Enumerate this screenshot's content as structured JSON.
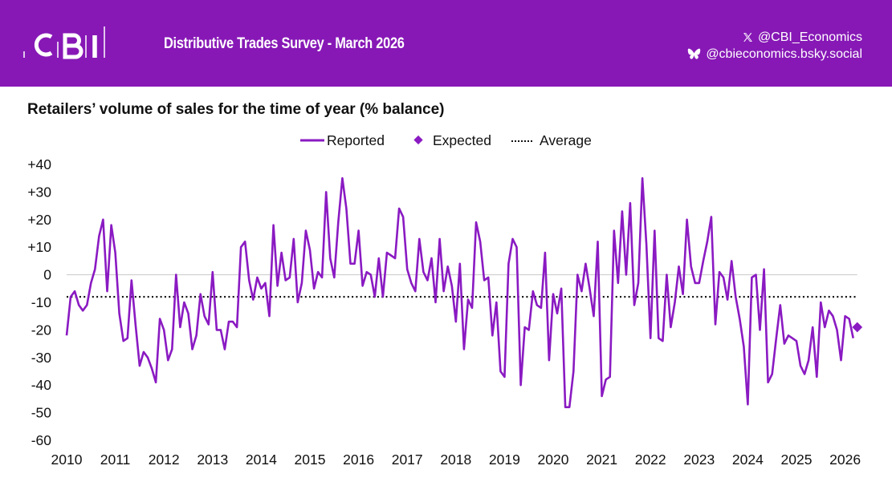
{
  "header": {
    "logo_text": "CBI",
    "survey_title": "Distributive Trades Survey - March 2026",
    "social": [
      {
        "icon": "x-icon",
        "handle": "@CBI_Economics"
      },
      {
        "icon": "butterfly-icon",
        "handle": "@cbieconomics.bsky.social"
      }
    ]
  },
  "colors": {
    "brand": "#8718b6",
    "series": "#8a1ac2",
    "average": "#111111",
    "zero_line": "#c8c8c8"
  },
  "chart_data": {
    "type": "line",
    "title": "Retailers’ volume of sales for the time of year (% balance)",
    "xlabel": "",
    "ylabel": "",
    "ylim": [
      -60,
      40
    ],
    "yticks": [
      40,
      30,
      20,
      10,
      0,
      -10,
      -20,
      -30,
      -40,
      -50,
      -60
    ],
    "ytick_labels": [
      "+40",
      "+30",
      "+20",
      "+10",
      "0",
      "-10",
      "-20",
      "-30",
      "-40",
      "-50",
      "-60"
    ],
    "xticks": [
      "2010",
      "2011",
      "2012",
      "2013",
      "2014",
      "2015",
      "2016",
      "2017",
      "2018",
      "2019",
      "2020",
      "2021",
      "2022",
      "2023",
      "2024",
      "2025",
      "2026"
    ],
    "x_range": [
      "2010-01",
      "2026-03"
    ],
    "grid": false,
    "legend": {
      "placement": "top-center",
      "entries": [
        {
          "label": "Reported",
          "style": "line"
        },
        {
          "label": "Expected",
          "style": "diamond"
        },
        {
          "label": "Average",
          "style": "dotted"
        }
      ]
    },
    "series": [
      {
        "name": "Reported",
        "start": "2010-01",
        "frequency": "monthly",
        "values": [
          -22,
          -8,
          -6,
          -11,
          -13,
          -11,
          -3,
          2,
          14,
          20,
          -6,
          18,
          8,
          -14,
          -24,
          -23,
          -2,
          -18,
          -33,
          -28,
          -30,
          -34,
          -39,
          -16,
          -20,
          -31,
          -27,
          0,
          -19,
          -10,
          -14,
          -27,
          -22,
          -7,
          -15,
          -18,
          1,
          -20,
          -20,
          -27,
          -17,
          -17,
          -19,
          10,
          12,
          -2,
          -9,
          -1,
          -5,
          -3,
          -15,
          18,
          -4,
          8,
          -2,
          -1,
          13,
          -10,
          -3,
          16,
          9,
          -5,
          1,
          -1,
          30,
          6,
          -1,
          19,
          35,
          24,
          4,
          4,
          16,
          -4,
          1,
          0,
          -8,
          6,
          -8,
          8,
          7,
          6,
          24,
          21,
          2,
          -3,
          -6,
          13,
          1,
          -2,
          6,
          -10,
          13,
          -6,
          3,
          -4,
          -17,
          4,
          -27,
          -9,
          -12,
          19,
          12,
          -2,
          -1,
          -22,
          -10,
          -35,
          -37,
          4,
          13,
          10,
          -40,
          -19,
          -20,
          -6,
          -11,
          -12,
          8,
          -31,
          -7,
          -14,
          -5,
          -48,
          -48,
          -35,
          0,
          -6,
          4,
          -5,
          -15,
          12,
          -44,
          -38,
          -37,
          16,
          -3,
          23,
          0,
          26,
          -11,
          -3,
          35,
          11,
          -23,
          16,
          -23,
          -24,
          0,
          -19,
          -10,
          3,
          -7,
          20,
          3,
          -3,
          -3,
          5,
          12,
          21,
          -18,
          1,
          -1,
          -9,
          5,
          -8,
          -16,
          -26,
          -47,
          -1,
          0,
          -20,
          2,
          -39,
          -36,
          -23,
          -11,
          -25,
          -22,
          -23,
          -24,
          -33,
          -36,
          -31,
          -19,
          -37,
          -10,
          -19,
          -13,
          -15,
          -20,
          -31,
          -15,
          -16,
          -23
        ]
      },
      {
        "name": "Expected",
        "points": [
          {
            "x": "2026-04",
            "y": -19
          }
        ]
      },
      {
        "name": "Average",
        "value": -8
      }
    ]
  }
}
